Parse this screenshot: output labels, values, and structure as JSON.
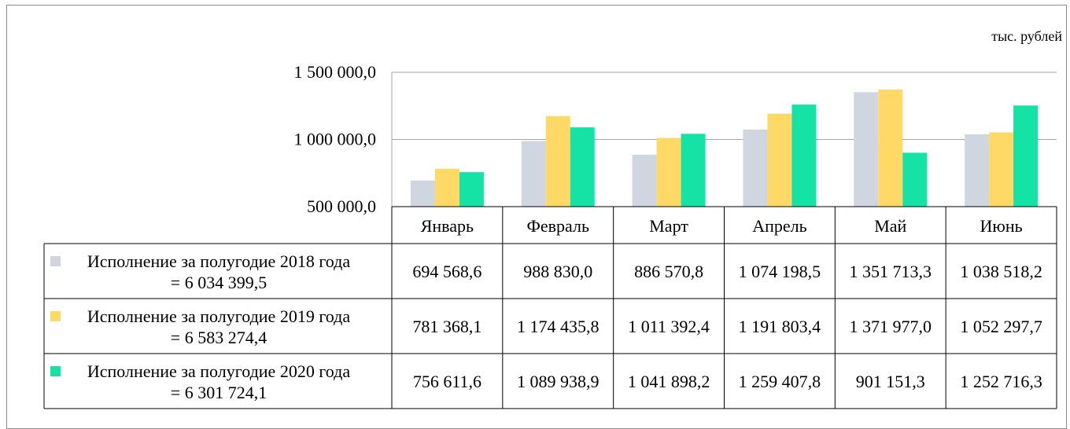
{
  "chart_data": {
    "type": "bar",
    "unit_label": "тыс. рублей",
    "categories": [
      "Январь",
      "Февраль",
      "Март",
      "Апрель",
      "Май",
      "Июнь"
    ],
    "ylim": [
      500000,
      1500000
    ],
    "y_ticks": [
      {
        "value": 1500000,
        "label": "1 500 000,0"
      },
      {
        "value": 1000000,
        "label": "1 000 000,0"
      },
      {
        "value": 500000,
        "label": "500 000,0"
      }
    ],
    "grid": true,
    "legend_placement": "data-table-left",
    "series": [
      {
        "name_line1": "Исполнение за полугодие 2018 года",
        "name_line2": "= 6 034 399,5",
        "color": "#d0d6e0",
        "values": [
          694568.6,
          988830.0,
          886570.8,
          1074198.5,
          1351713.3,
          1038518.2
        ],
        "labels": [
          "694 568,6",
          "988 830,0",
          "886 570,8",
          "1 074 198,5",
          "1 351 713,3",
          "1 038 518,2"
        ]
      },
      {
        "name_line1": "Исполнение за полугодие 2019 года",
        "name_line2": "= 6 583 274,4",
        "color": "#ffd966",
        "values": [
          781368.1,
          1174435.8,
          1011392.4,
          1191803.4,
          1371977.0,
          1052297.7
        ],
        "labels": [
          "781 368,1",
          "1 174 435,8",
          "1 011 392,4",
          "1 191 803,4",
          "1 371 977,0",
          "1 052 297,7"
        ]
      },
      {
        "name_line1": "Исполнение за полугодие 2020 года",
        "name_line2": "= 6 301 724,1",
        "color": "#14e3a5",
        "values": [
          756611.6,
          1089938.9,
          1041898.2,
          1259407.8,
          901151.3,
          1252716.3
        ],
        "labels": [
          "756 611,6",
          "1 089 938,9",
          "1 041 898,2",
          "1 259 407,8",
          "901 151,3",
          "1 252 716,3"
        ]
      }
    ]
  }
}
